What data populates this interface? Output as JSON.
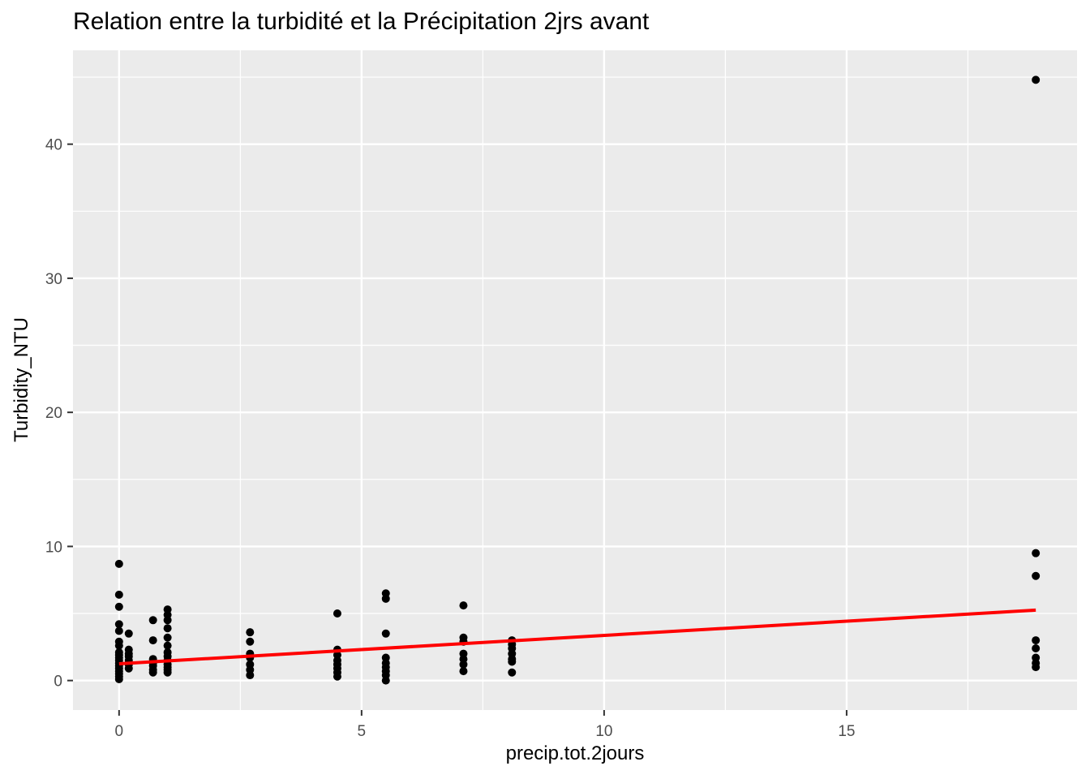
{
  "chart_data": {
    "type": "scatter",
    "title": "Relation entre la turbidité et la Précipitation 2jrs avant",
    "xlabel": "precip.tot.2jours",
    "ylabel": "Turbidity_NTU",
    "xlim": [
      -0.95,
      19.75
    ],
    "ylim": [
      -2.2,
      47.0
    ],
    "x_ticks": [
      0,
      5,
      10,
      15
    ],
    "y_ticks": [
      0,
      10,
      20,
      30,
      40
    ],
    "grid": true,
    "panel_color": "#ebebeb",
    "grid_color": "#ffffff",
    "point_color": "#000000",
    "fit_color": "#ff0000",
    "points": [
      {
        "x": 0,
        "y": 8.7
      },
      {
        "x": 0,
        "y": 6.4
      },
      {
        "x": 0,
        "y": 5.5
      },
      {
        "x": 0,
        "y": 4.2
      },
      {
        "x": 0,
        "y": 3.7
      },
      {
        "x": 0,
        "y": 2.9
      },
      {
        "x": 0,
        "y": 2.6
      },
      {
        "x": 0,
        "y": 2.1
      },
      {
        "x": 0,
        "y": 1.9
      },
      {
        "x": 0,
        "y": 1.7
      },
      {
        "x": 0,
        "y": 1.5
      },
      {
        "x": 0,
        "y": 1.3
      },
      {
        "x": 0,
        "y": 1.1
      },
      {
        "x": 0,
        "y": 0.9
      },
      {
        "x": 0,
        "y": 0.7
      },
      {
        "x": 0,
        "y": 0.5
      },
      {
        "x": 0,
        "y": 0.3
      },
      {
        "x": 0,
        "y": 0.1
      },
      {
        "x": 0.2,
        "y": 3.5
      },
      {
        "x": 0.2,
        "y": 2.3
      },
      {
        "x": 0.2,
        "y": 2.0
      },
      {
        "x": 0.2,
        "y": 1.8
      },
      {
        "x": 0.2,
        "y": 1.5
      },
      {
        "x": 0.2,
        "y": 1.2
      },
      {
        "x": 0.2,
        "y": 0.9
      },
      {
        "x": 0.7,
        "y": 4.5
      },
      {
        "x": 0.7,
        "y": 3.0
      },
      {
        "x": 0.7,
        "y": 1.6
      },
      {
        "x": 0.7,
        "y": 1.3
      },
      {
        "x": 0.7,
        "y": 1.1
      },
      {
        "x": 0.7,
        "y": 0.8
      },
      {
        "x": 0.7,
        "y": 0.6
      },
      {
        "x": 1.0,
        "y": 5.3
      },
      {
        "x": 1.0,
        "y": 4.9
      },
      {
        "x": 1.0,
        "y": 4.5
      },
      {
        "x": 1.0,
        "y": 3.9
      },
      {
        "x": 1.0,
        "y": 3.2
      },
      {
        "x": 1.0,
        "y": 2.6
      },
      {
        "x": 1.0,
        "y": 2.1
      },
      {
        "x": 1.0,
        "y": 1.8
      },
      {
        "x": 1.0,
        "y": 1.5
      },
      {
        "x": 1.0,
        "y": 1.2
      },
      {
        "x": 1.0,
        "y": 1.0
      },
      {
        "x": 1.0,
        "y": 0.8
      },
      {
        "x": 1.0,
        "y": 0.6
      },
      {
        "x": 2.7,
        "y": 3.6
      },
      {
        "x": 2.7,
        "y": 2.9
      },
      {
        "x": 2.7,
        "y": 2.0
      },
      {
        "x": 2.7,
        "y": 1.7
      },
      {
        "x": 2.7,
        "y": 1.2
      },
      {
        "x": 2.7,
        "y": 0.8
      },
      {
        "x": 2.7,
        "y": 0.4
      },
      {
        "x": 4.5,
        "y": 5.0
      },
      {
        "x": 4.5,
        "y": 2.3
      },
      {
        "x": 4.5,
        "y": 1.9
      },
      {
        "x": 4.5,
        "y": 1.5
      },
      {
        "x": 4.5,
        "y": 1.2
      },
      {
        "x": 4.5,
        "y": 0.9
      },
      {
        "x": 4.5,
        "y": 0.6
      },
      {
        "x": 4.5,
        "y": 0.3
      },
      {
        "x": 5.5,
        "y": 6.5
      },
      {
        "x": 5.5,
        "y": 6.1
      },
      {
        "x": 5.5,
        "y": 3.5
      },
      {
        "x": 5.5,
        "y": 1.7
      },
      {
        "x": 5.5,
        "y": 1.3
      },
      {
        "x": 5.5,
        "y": 1.0
      },
      {
        "x": 5.5,
        "y": 0.7
      },
      {
        "x": 5.5,
        "y": 0.4
      },
      {
        "x": 5.5,
        "y": 0.0
      },
      {
        "x": 7.1,
        "y": 5.6
      },
      {
        "x": 7.1,
        "y": 3.2
      },
      {
        "x": 7.1,
        "y": 2.9
      },
      {
        "x": 7.1,
        "y": 2.0
      },
      {
        "x": 7.1,
        "y": 1.6
      },
      {
        "x": 7.1,
        "y": 1.2
      },
      {
        "x": 7.1,
        "y": 0.7
      },
      {
        "x": 8.1,
        "y": 3.0
      },
      {
        "x": 8.1,
        "y": 2.7
      },
      {
        "x": 8.1,
        "y": 2.4
      },
      {
        "x": 8.1,
        "y": 2.0
      },
      {
        "x": 8.1,
        "y": 1.6
      },
      {
        "x": 8.1,
        "y": 1.4
      },
      {
        "x": 8.1,
        "y": 0.6
      },
      {
        "x": 18.9,
        "y": 44.8
      },
      {
        "x": 18.9,
        "y": 9.5
      },
      {
        "x": 18.9,
        "y": 7.8
      },
      {
        "x": 18.9,
        "y": 3.0
      },
      {
        "x": 18.9,
        "y": 2.4
      },
      {
        "x": 18.9,
        "y": 1.7
      },
      {
        "x": 18.9,
        "y": 1.3
      },
      {
        "x": 18.9,
        "y": 1.0
      }
    ],
    "fit_line": {
      "x": [
        0,
        18.9
      ],
      "y": [
        1.25,
        5.25
      ]
    }
  }
}
